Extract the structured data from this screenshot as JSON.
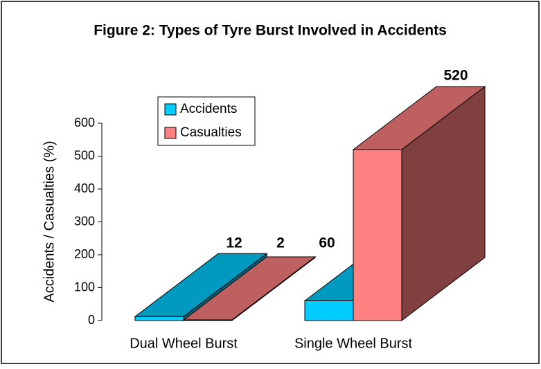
{
  "chart_data": {
    "type": "bar3d",
    "title": "Figure 2:  Types of Tyre Burst Involved in Accidents",
    "y_label": "Accidents / Casualties (%)",
    "categories": [
      "Dual Wheel Burst",
      "Single Wheel Burst"
    ],
    "series": [
      {
        "name": "Accidents",
        "color": "#00ccff",
        "values": [
          12,
          60
        ]
      },
      {
        "name": "Casualties",
        "color": "#ff8080",
        "values": [
          2,
          520
        ]
      }
    ],
    "ylim": [
      0,
      600
    ],
    "yticks": [
      0,
      100,
      200,
      300,
      400,
      500,
      600
    ],
    "legend": "upper-left"
  }
}
